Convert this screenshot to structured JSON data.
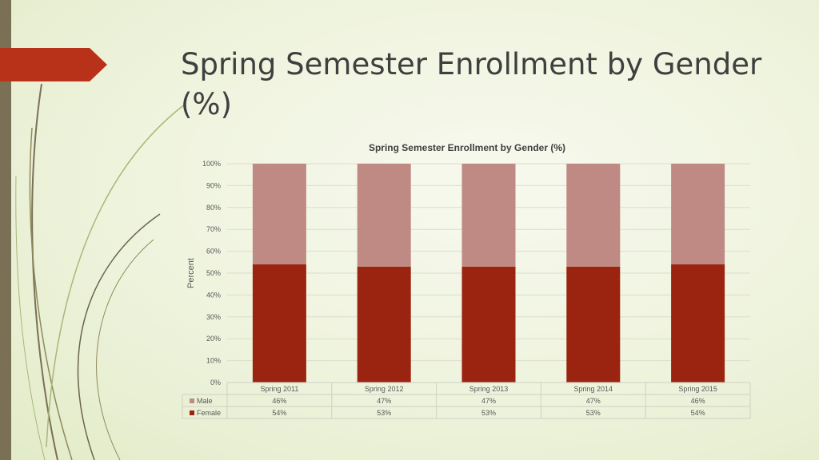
{
  "slide": {
    "title": "Spring Semester Enrollment by Gender (%)"
  },
  "colors": {
    "female": "#9b2411",
    "male": "#c08a84",
    "accent": "#b8321a",
    "sidebar": "#7a7055"
  },
  "chart_data": {
    "type": "bar",
    "stacked": true,
    "title": "Spring Semester Enrollment by Gender (%)",
    "ylabel": "Percent",
    "xlabel": "",
    "ylim": [
      0,
      100
    ],
    "y_ticks": [
      "0%",
      "10%",
      "20%",
      "30%",
      "40%",
      "50%",
      "60%",
      "70%",
      "80%",
      "90%",
      "100%"
    ],
    "categories": [
      "Spring 2011",
      "Spring 2012",
      "Spring 2013",
      "Spring 2014",
      "Spring 2015"
    ],
    "series": [
      {
        "name": "Female",
        "values": [
          54,
          53,
          53,
          53,
          54
        ],
        "labels": [
          "54%",
          "53%",
          "53%",
          "53%",
          "54%"
        ]
      },
      {
        "name": "Male",
        "values": [
          46,
          47,
          47,
          47,
          46
        ],
        "labels": [
          "46%",
          "47%",
          "47%",
          "47%",
          "46%"
        ]
      }
    ],
    "grid": true,
    "legend": "data-table"
  }
}
